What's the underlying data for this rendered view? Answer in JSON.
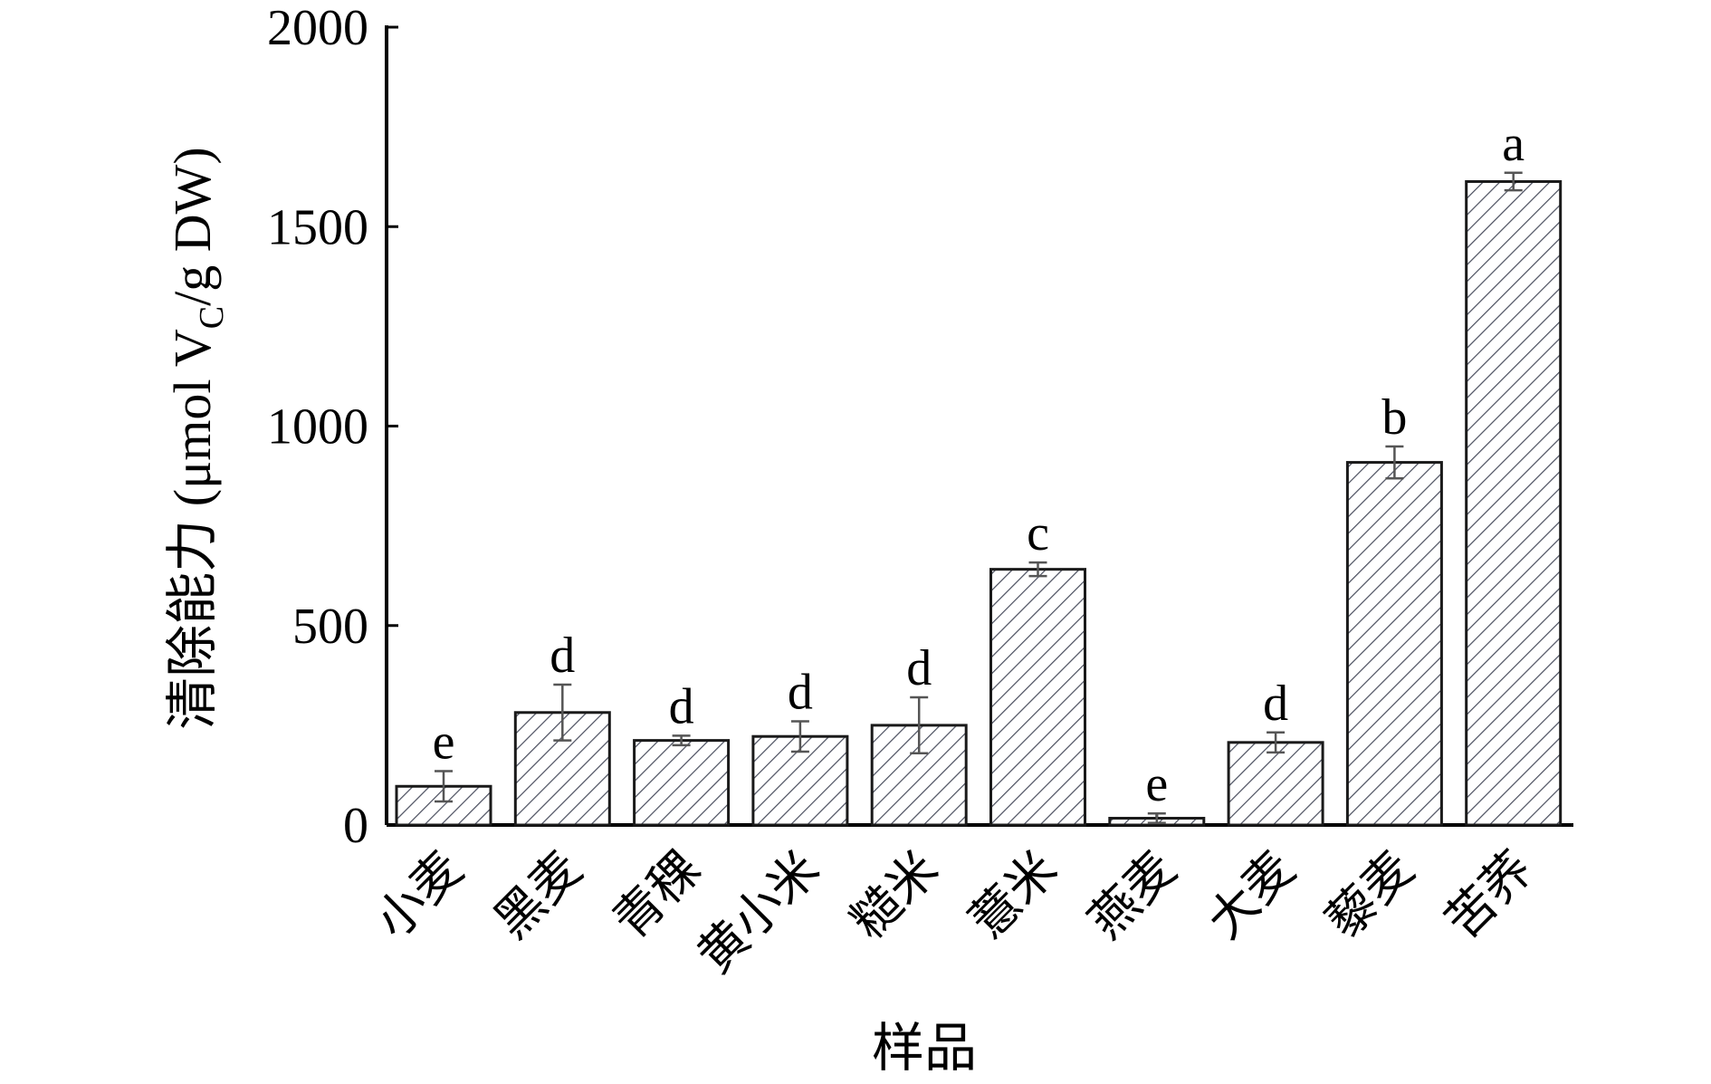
{
  "chart_data": {
    "type": "bar",
    "title": "",
    "xlabel": "样品",
    "ylabel": {
      "prefix": "清除能力 (μmol V",
      "subscript": "C",
      "suffix": "/g DW)"
    },
    "ylim": [
      0,
      2000
    ],
    "yticks": [
      0,
      500,
      1000,
      1500,
      2000
    ],
    "grid": false,
    "pattern": "diagonal-hatch",
    "categories": [
      "小麦",
      "黑麦",
      "青稞",
      "黄小米",
      "糙米",
      "薏米",
      "燕麦",
      "大麦",
      "藜麦",
      "苦荞"
    ],
    "values": [
      97,
      282,
      212,
      222,
      250,
      641,
      17,
      207,
      909,
      1613
    ],
    "errors": [
      38,
      70,
      12,
      38,
      70,
      17,
      12,
      25,
      40,
      22
    ],
    "letters": [
      "e",
      "d",
      "d",
      "d",
      "d",
      "c",
      "e",
      "d",
      "b",
      "a"
    ]
  }
}
